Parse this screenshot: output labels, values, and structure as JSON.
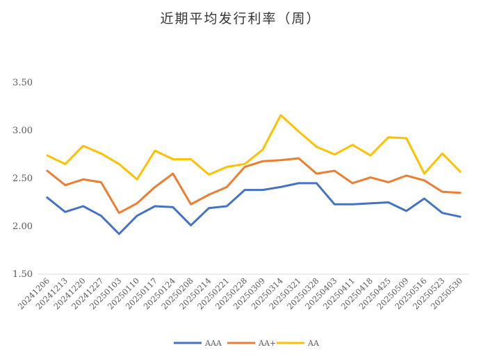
{
  "chart_data": {
    "type": "line",
    "title": "近期平均发行利率（周）",
    "xlabel": "",
    "ylabel": "",
    "ylim": [
      1.5,
      3.5
    ],
    "yticks": [
      "1.50",
      "2.00",
      "2.50",
      "3.00",
      "3.50"
    ],
    "grid": false,
    "legend_position": "bottom",
    "categories": [
      "20241206",
      "20241213",
      "20241220",
      "20241227",
      "20250103",
      "20250110",
      "20250117",
      "20250124",
      "20250208",
      "20250214",
      "20250221",
      "20250228",
      "20250309",
      "20250314",
      "20250321",
      "20250328",
      "20250403",
      "20250411",
      "20250418",
      "20250425",
      "20250509",
      "20250516",
      "20250523",
      "20250530"
    ],
    "series": [
      {
        "name": "AAA",
        "color": "#4472C4",
        "values": [
          2.3,
          2.15,
          2.21,
          2.11,
          1.92,
          2.11,
          2.21,
          2.2,
          2.01,
          2.19,
          2.21,
          2.38,
          2.38,
          2.41,
          2.45,
          2.45,
          2.23,
          2.23,
          2.24,
          2.25,
          2.16,
          2.29,
          2.14,
          2.1
        ]
      },
      {
        "name": "AA+",
        "color": "#ED7D31",
        "values": [
          2.58,
          2.43,
          2.49,
          2.46,
          2.14,
          2.24,
          2.41,
          2.55,
          2.23,
          2.33,
          2.41,
          2.62,
          2.68,
          2.69,
          2.71,
          2.55,
          2.58,
          2.45,
          2.51,
          2.46,
          2.53,
          2.48,
          2.36,
          2.35
        ]
      },
      {
        "name": "AA",
        "color": "#FFC000",
        "values": [
          2.74,
          2.65,
          2.84,
          2.76,
          2.65,
          2.49,
          2.79,
          2.7,
          2.7,
          2.54,
          2.62,
          2.65,
          2.8,
          3.16,
          2.99,
          2.83,
          2.75,
          2.85,
          2.74,
          2.93,
          2.92,
          2.55,
          2.76,
          2.57
        ]
      }
    ]
  }
}
